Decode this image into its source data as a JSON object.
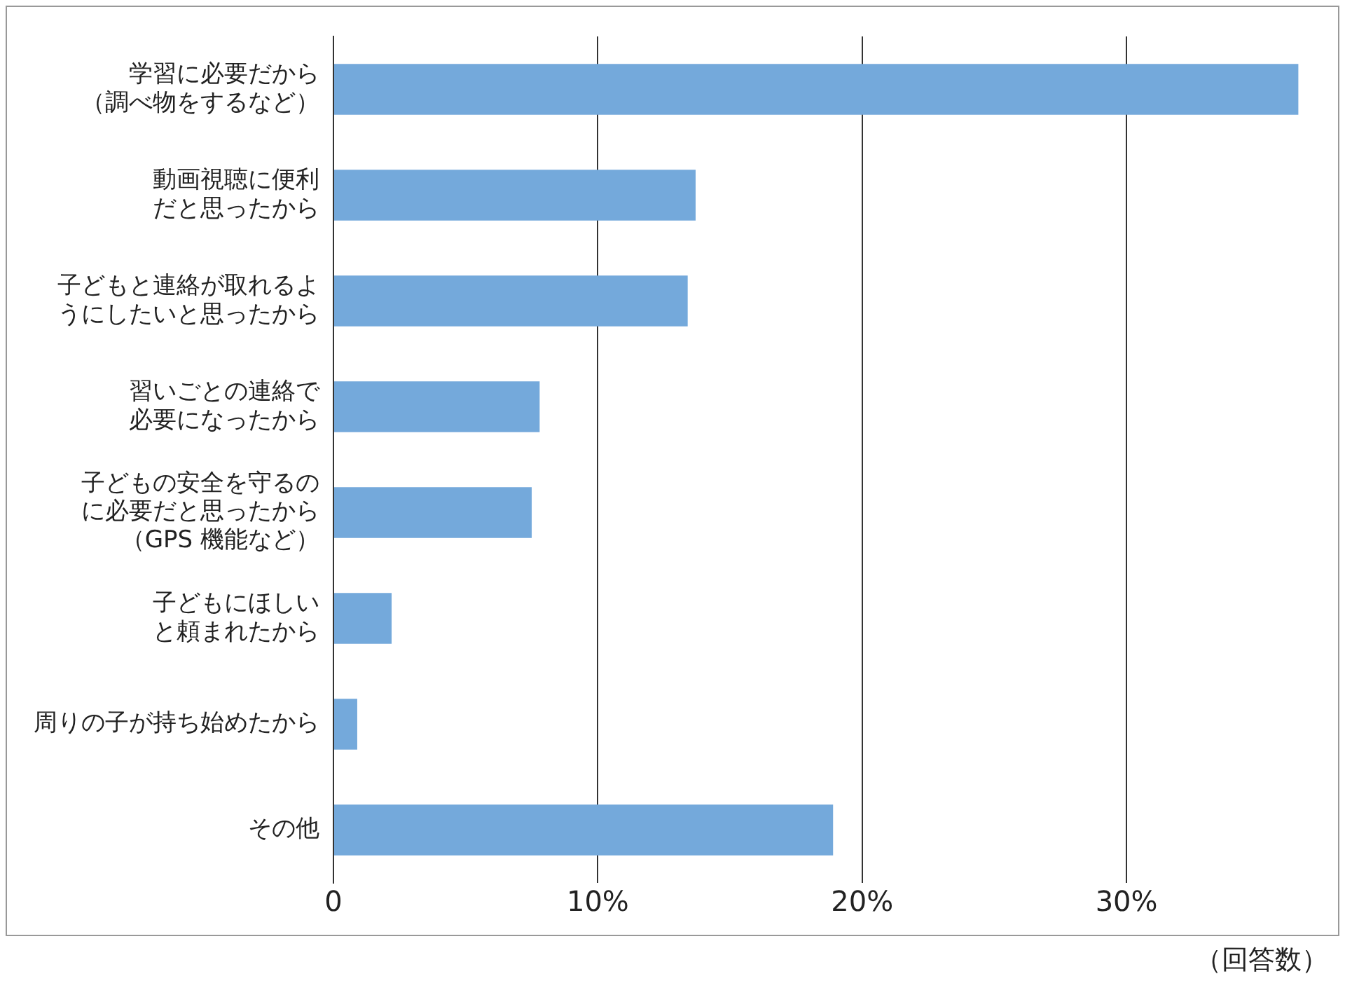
{
  "chart_data": {
    "type": "bar",
    "orientation": "horizontal",
    "categories": [
      "学習に必要だから（調べ物をするなど）",
      "動画視聴に便利だと思ったから",
      "子どもと連絡が取れるようにしたいと思ったから",
      "習いごとの連絡で必要になったから",
      "子どもの安全を守るのに必要だと思ったから（GPS 機能など）",
      "子どもにほしいと頼まれたから",
      "周りの子が持ち始めたから",
      "その他"
    ],
    "values": [
      36.5,
      13.7,
      13.4,
      7.8,
      7.5,
      2.2,
      0.9,
      18.9
    ],
    "color": "#74a9db",
    "xlim": [
      0,
      38
    ],
    "xticks": [
      0,
      {
        "value": 10,
        "label": "10%"
      },
      {
        "value": 20,
        "label": "20%"
      },
      {
        "value": 30,
        "label": "30%"
      }
    ],
    "grid": "x",
    "annotations": [
      "（回答数）"
    ]
  }
}
